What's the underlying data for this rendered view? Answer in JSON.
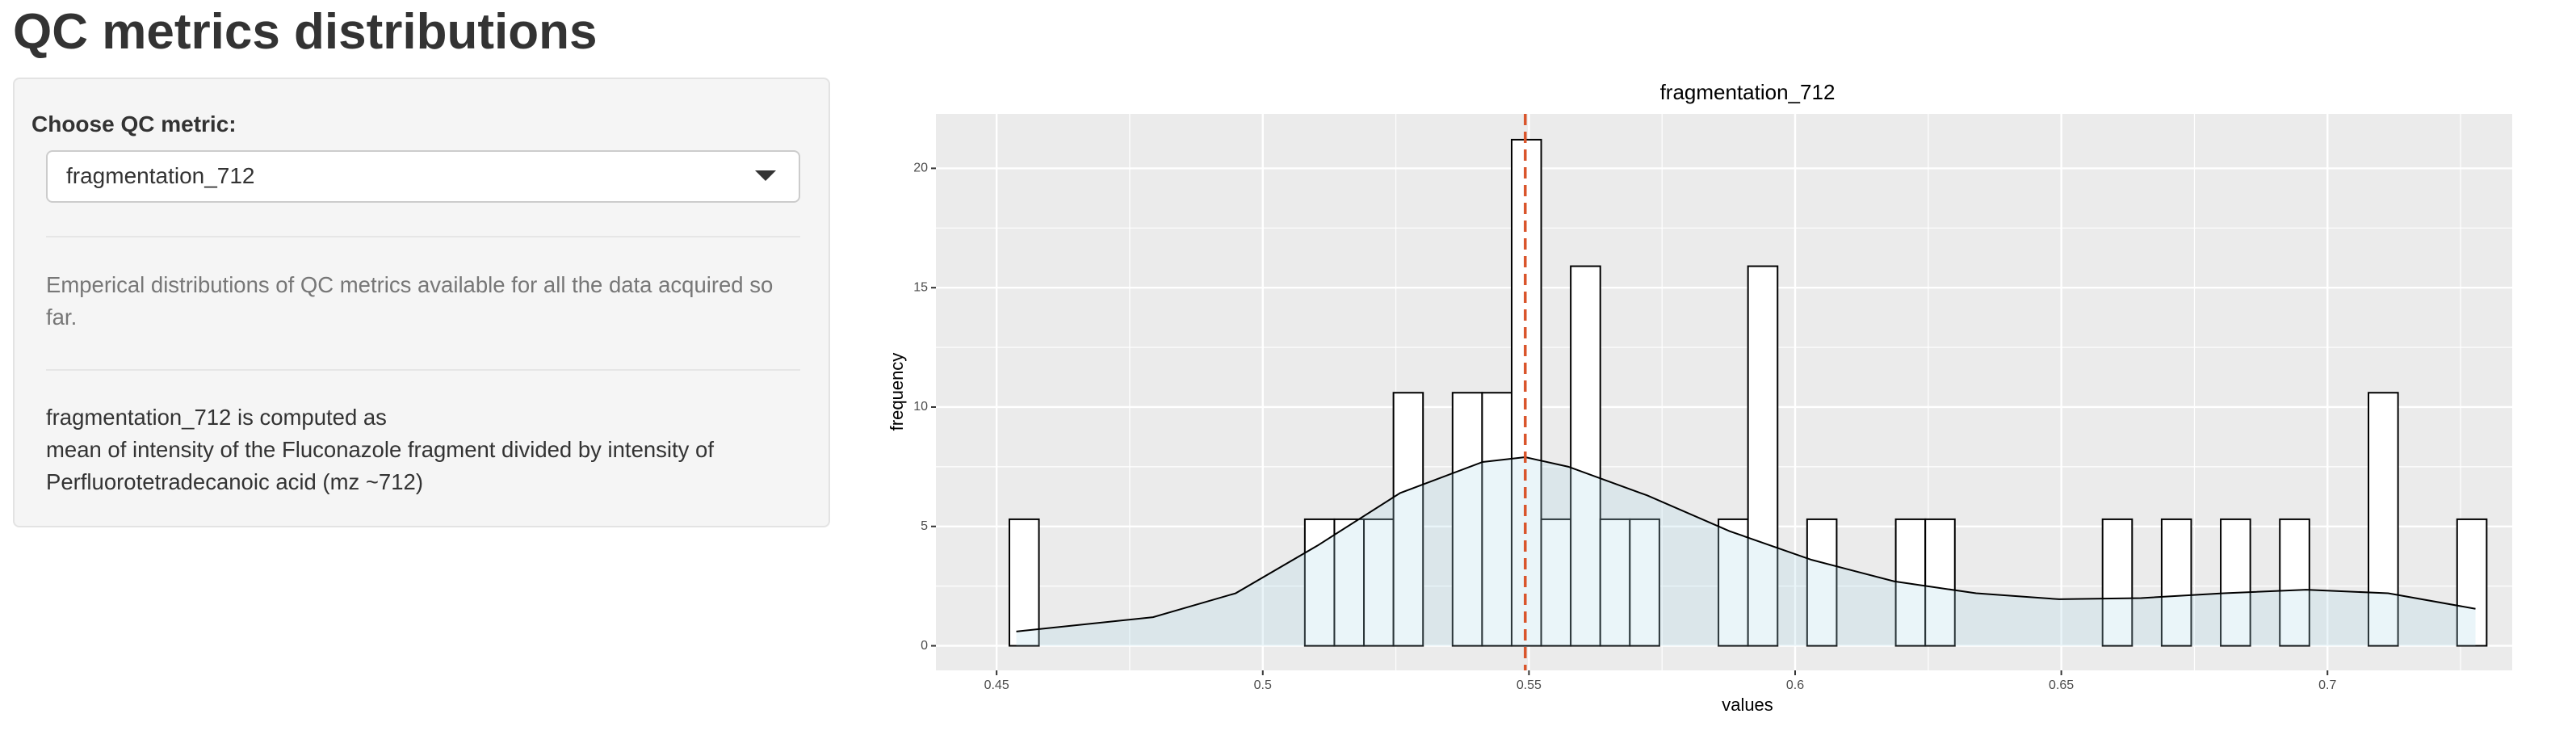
{
  "header": {
    "title": "QC metrics distributions"
  },
  "sidebar": {
    "label": "Choose QC metric:",
    "selected": "fragmentation_712",
    "description": "Emperical distributions of QC metrics available for all the data acquired so far.",
    "formula_title": "fragmentation_712 is computed as",
    "formula": "mean of intensity of the Fluconazole fragment divided by intensity of Perfluorotetradecanoic acid (mz ~712)"
  },
  "chart_data": {
    "type": "histogram",
    "title": "fragmentation_712",
    "x_label": "values",
    "y_label": "frequency",
    "bins": [
      0.4524,
      0.45795,
      0.4635,
      0.46905,
      0.4746,
      0.48015,
      0.4857,
      0.49125,
      0.4968,
      0.50235,
      0.5079,
      0.51345,
      0.519,
      0.52455,
      0.5301,
      0.53565,
      0.5412,
      0.54675,
      0.5523,
      0.55785,
      0.5634,
      0.56895,
      0.5745,
      0.58005,
      0.5856,
      0.59115,
      0.5967,
      0.60225,
      0.6078,
      0.61335,
      0.6189,
      0.62445,
      0.63,
      0.63555,
      0.6411,
      0.64665,
      0.6522,
      0.65775,
      0.6633,
      0.66885,
      0.6744,
      0.67995,
      0.6855,
      0.69105,
      0.6966,
      0.70215,
      0.7077,
      0.71325,
      0.7188,
      0.72435,
      0.7299
    ],
    "values": [
      5.3,
      0,
      0,
      0,
      0,
      0,
      0,
      0,
      0,
      0,
      5.3,
      5.3,
      5.3,
      10.6,
      0,
      10.6,
      10.6,
      21.2,
      5.3,
      15.9,
      5.3,
      5.3,
      0,
      0,
      5.3,
      15.9,
      0,
      5.3,
      0,
      0,
      5.3,
      5.3,
      0,
      0,
      0,
      0,
      0,
      5.3,
      0,
      5.3,
      0,
      5.3,
      0,
      5.3,
      0,
      0,
      10.6,
      0,
      0,
      5.3
    ],
    "color": "#ffffff",
    "edge_color": "#000000",
    "density": {
      "color": "#add8e6",
      "x": [
        0.4537,
        0.4794,
        0.4949,
        0.5103,
        0.5258,
        0.5413,
        0.5493,
        0.5574,
        0.5722,
        0.5877,
        0.6031,
        0.6186,
        0.634,
        0.6496,
        0.665,
        0.6805,
        0.696,
        0.7114,
        0.7278
      ],
      "y": [
        0.6,
        1.2,
        2.2,
        4.2,
        6.4,
        7.7,
        7.9,
        7.5,
        6.3,
        4.8,
        3.6,
        2.7,
        2.2,
        1.95,
        2.0,
        2.2,
        2.35,
        2.2,
        1.55
      ]
    },
    "vline": {
      "value": 0.5493,
      "color": "#d9542b"
    },
    "xlim": [
      0.4386,
      0.7347
    ],
    "ylim": [
      -1.03,
      22.28
    ],
    "xticks": [
      0.45,
      0.5,
      0.55,
      0.6,
      0.65,
      0.7
    ],
    "yticks": [
      0,
      5,
      10,
      15,
      20
    ],
    "grid": true
  }
}
